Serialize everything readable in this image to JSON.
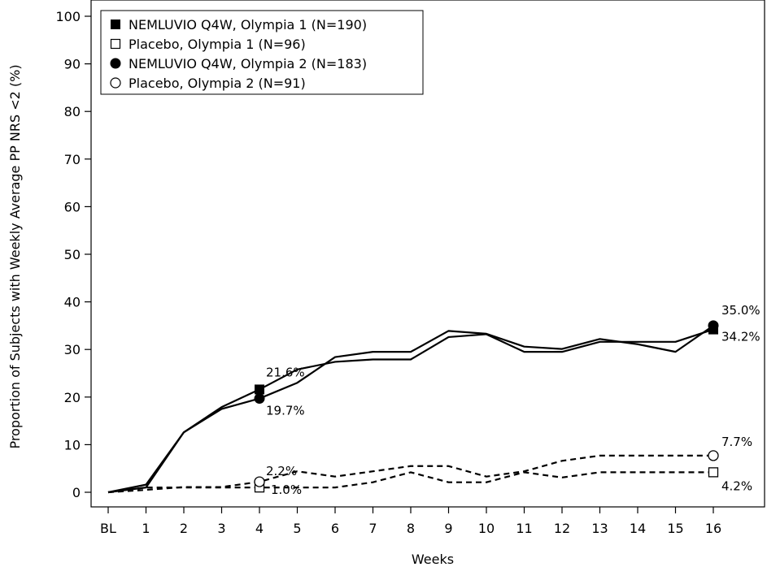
{
  "chart_data": {
    "type": "line",
    "xlabel": "Weeks",
    "ylabel": "Proportion of Subjects with Weekly Average PP NRS <2 (%)",
    "categories": [
      "BL",
      "1",
      "2",
      "3",
      "4",
      "5",
      "6",
      "7",
      "8",
      "9",
      "10",
      "11",
      "12",
      "13",
      "14",
      "15",
      "16"
    ],
    "ylim": [
      0,
      100
    ],
    "yticks": [
      0,
      10,
      20,
      30,
      40,
      50,
      60,
      70,
      80,
      90,
      100
    ],
    "grid": false,
    "legend_position": "top-left",
    "series": [
      {
        "name": "NEMLUVIO Q4W, Olympia 1 (N=190)",
        "marker": "filled-square",
        "line": "solid",
        "values": [
          0,
          1.0,
          12.6,
          17.9,
          21.6,
          25.8,
          27.4,
          27.9,
          27.9,
          32.6,
          33.2,
          29.5,
          29.5,
          31.6,
          31.6,
          31.6,
          34.2
        ]
      },
      {
        "name": "Placebo, Olympia 1 (N=96)",
        "marker": "open-square",
        "line": "dashed",
        "values": [
          0,
          1.0,
          1.0,
          1.0,
          1.0,
          1.0,
          1.0,
          2.1,
          4.2,
          2.1,
          2.1,
          4.2,
          3.1,
          4.2,
          4.2,
          4.2,
          4.2
        ]
      },
      {
        "name": "NEMLUVIO Q4W, Olympia 2 (N=183)",
        "marker": "filled-circle",
        "line": "solid",
        "values": [
          0,
          1.6,
          12.6,
          17.5,
          19.7,
          23.0,
          28.4,
          29.5,
          29.5,
          33.9,
          33.3,
          30.6,
          30.1,
          32.2,
          31.1,
          29.5,
          35.0
        ]
      },
      {
        "name": "Placebo, Olympia 2 (N=91)",
        "marker": "open-circle",
        "line": "dashed",
        "values": [
          0,
          0.5,
          1.1,
          1.1,
          2.2,
          4.4,
          3.3,
          4.4,
          5.5,
          5.5,
          3.3,
          4.4,
          6.6,
          7.7,
          7.7,
          7.7,
          7.7
        ]
      }
    ],
    "annotations": [
      {
        "text": "21.6%",
        "series": 0,
        "x": "4"
      },
      {
        "text": "19.7%",
        "series": 2,
        "x": "4"
      },
      {
        "text": "2.2%",
        "series": 3,
        "x": "4"
      },
      {
        "text": "1.0%",
        "series": 1,
        "x": "4"
      },
      {
        "text": "35.0%",
        "series": 2,
        "x": "16"
      },
      {
        "text": "34.2%",
        "series": 0,
        "x": "16"
      },
      {
        "text": "7.7%",
        "series": 3,
        "x": "16"
      },
      {
        "text": "4.2%",
        "series": 1,
        "x": "16"
      }
    ]
  }
}
